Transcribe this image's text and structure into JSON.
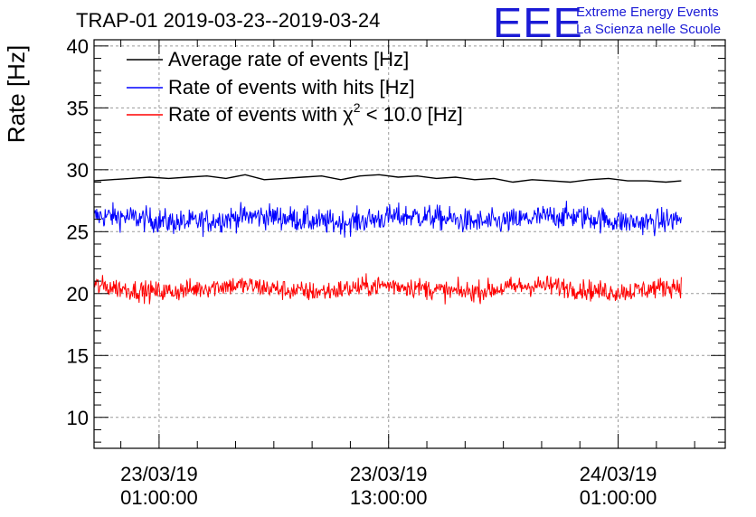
{
  "logo": {
    "letters": "EEE",
    "line1": "Extreme Energy Events",
    "line2": "La Scienza nelle Scuole",
    "color": "#1a1ad6"
  },
  "chart_data": {
    "type": "line",
    "title": "TRAP-01 2019-03-23--2019-03-24",
    "xlabel": "",
    "ylabel": "Rate [Hz]",
    "ylim": [
      7.5,
      40.5
    ],
    "yticks": [
      10,
      15,
      20,
      25,
      30,
      35,
      40
    ],
    "xlim_hours": [
      -2.4,
      30.6
    ],
    "data_range_hours": [
      -2.4,
      28.3
    ],
    "xticks": [
      {
        "hour": 1,
        "date": "23/03/19",
        "time": "01:00:00"
      },
      {
        "hour": 13,
        "date": "23/03/19",
        "time": "13:00:00"
      },
      {
        "hour": 25,
        "date": "24/03/19",
        "time": "01:00:00"
      }
    ],
    "grid": true,
    "legend_position": "top-left",
    "series": [
      {
        "name": "Average rate of events [Hz]",
        "color": "#000000",
        "style": "smooth",
        "points_hours": [
          -2.4,
          -1.5,
          -0.5,
          0.5,
          1.5,
          2.5,
          3.5,
          4.5,
          5.5,
          6.5,
          7.5,
          8.5,
          9.5,
          10.5,
          11.5,
          12.5,
          13.5,
          14.5,
          15.5,
          16.5,
          17.5,
          18.5,
          19.5,
          20.5,
          21.5,
          22.5,
          23.5,
          24.5,
          25.5,
          26.5,
          27.5,
          28.3
        ],
        "values": [
          29.1,
          29.2,
          29.3,
          29.4,
          29.3,
          29.4,
          29.5,
          29.3,
          29.6,
          29.2,
          29.3,
          29.4,
          29.5,
          29.2,
          29.5,
          29.6,
          29.4,
          29.5,
          29.3,
          29.4,
          29.2,
          29.3,
          29.0,
          29.2,
          29.1,
          29.0,
          29.2,
          29.3,
          29.1,
          29.1,
          29.0,
          29.1
        ]
      },
      {
        "name": "Rate of events with hits [Hz]",
        "color": "#0000ff",
        "style": "noisy",
        "mean": 26.0,
        "spread": 0.9,
        "peak_min": 24.2,
        "peak_max": 28.4
      },
      {
        "name": "Rate of events with χ² < 10.0 [Hz]",
        "legend_parts": {
          "pre": "Rate of events with ",
          "symbol": "χ",
          "sup": "2",
          "post": " < 10.0 [Hz]"
        },
        "color": "#ff0000",
        "style": "noisy",
        "mean": 20.4,
        "spread": 0.75,
        "peak_min": 19.0,
        "peak_max": 22.4
      }
    ]
  }
}
